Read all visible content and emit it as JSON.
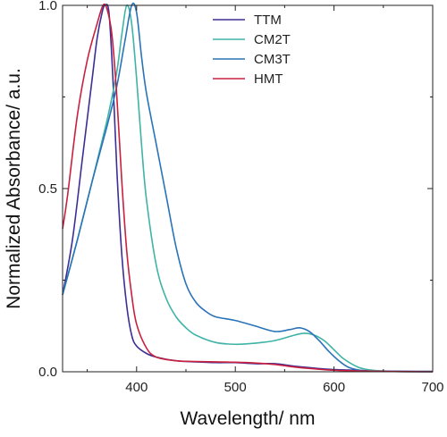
{
  "chart_data": {
    "type": "line",
    "xlabel": "Wavelength/ nm",
    "ylabel": "Normalized Absorbance/ a.u.",
    "xlim": [
      325,
      700
    ],
    "ylim": [
      0,
      1.0
    ],
    "xticks": [
      400,
      500,
      600,
      700
    ],
    "yticks": [
      0.0,
      0.5,
      1.0
    ],
    "xtick_labels": [
      "400",
      "500",
      "600",
      "700"
    ],
    "ytick_labels": [
      "0.0",
      "0.5",
      "1.0"
    ],
    "grid": false,
    "legend_position": "top-right",
    "series": [
      {
        "name": "TTM",
        "color": "#3b2e95",
        "x": [
          325,
          335,
          345,
          355,
          360,
          365,
          368,
          372,
          376,
          380,
          385,
          390,
          395,
          400,
          410,
          420,
          440,
          460,
          480,
          500,
          520,
          540,
          560,
          580,
          600,
          650,
          700
        ],
        "y": [
          0.21,
          0.36,
          0.58,
          0.8,
          0.91,
          0.98,
          1.0,
          0.98,
          0.8,
          0.55,
          0.32,
          0.18,
          0.1,
          0.07,
          0.05,
          0.04,
          0.03,
          0.027,
          0.025,
          0.025,
          0.022,
          0.022,
          0.015,
          0.01,
          0.006,
          0.002,
          0.001
        ]
      },
      {
        "name": "CM2T",
        "color": "#3fb3a6",
        "x": [
          325,
          340,
          355,
          365,
          372,
          380,
          385,
          390,
          395,
          400,
          405,
          410,
          420,
          430,
          440,
          450,
          460,
          480,
          500,
          520,
          540,
          560,
          570,
          580,
          590,
          600,
          610,
          625,
          640,
          660,
          700
        ],
        "y": [
          0.21,
          0.36,
          0.52,
          0.63,
          0.71,
          0.82,
          0.92,
          1.0,
          0.95,
          0.8,
          0.62,
          0.47,
          0.29,
          0.2,
          0.15,
          0.12,
          0.1,
          0.08,
          0.075,
          0.078,
          0.085,
          0.1,
          0.105,
          0.1,
          0.085,
          0.06,
          0.035,
          0.012,
          0.004,
          0.001,
          0.0
        ]
      },
      {
        "name": "CM3T",
        "color": "#2a73b8",
        "x": [
          325,
          340,
          355,
          370,
          380,
          388,
          395,
          400,
          405,
          410,
          420,
          430,
          440,
          450,
          460,
          470,
          480,
          500,
          520,
          540,
          555,
          565,
          575,
          585,
          595,
          605,
          615,
          630,
          650,
          700
        ],
        "y": [
          0.21,
          0.36,
          0.52,
          0.67,
          0.78,
          0.9,
          1.0,
          0.98,
          0.86,
          0.76,
          0.62,
          0.48,
          0.34,
          0.24,
          0.19,
          0.165,
          0.15,
          0.14,
          0.125,
          0.11,
          0.115,
          0.12,
          0.11,
          0.085,
          0.055,
          0.03,
          0.012,
          0.003,
          0.001,
          0.0
        ]
      },
      {
        "name": "HMT",
        "color": "#c8203e",
        "x": [
          325,
          330,
          340,
          350,
          360,
          366,
          370,
          375,
          380,
          385,
          390,
          395,
          400,
          410,
          420,
          440,
          460,
          480,
          500,
          520,
          540,
          560,
          580,
          600,
          650,
          700
        ],
        "y": [
          0.39,
          0.48,
          0.7,
          0.85,
          0.95,
          1.0,
          0.99,
          0.92,
          0.75,
          0.52,
          0.33,
          0.21,
          0.13,
          0.065,
          0.04,
          0.03,
          0.028,
          0.027,
          0.026,
          0.024,
          0.02,
          0.013,
          0.008,
          0.004,
          0.001,
          0.0
        ]
      }
    ]
  }
}
